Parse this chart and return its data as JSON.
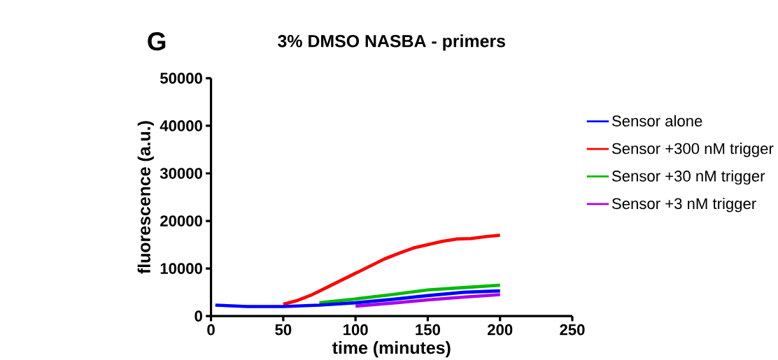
{
  "chart_data": {
    "type": "line",
    "title": "3% DMSO NASBA - primers",
    "xlabel": "time (minutes)",
    "ylabel": "fluorescence (a.u.)",
    "annotations": [
      "G"
    ],
    "xlim": [
      0,
      250
    ],
    "xticks": [
      0,
      50,
      100,
      150,
      200,
      250
    ],
    "ylim": [
      0,
      50000
    ],
    "yticks": [
      0,
      10000,
      20000,
      30000,
      40000,
      50000
    ],
    "grid": false,
    "legend": "right",
    "marker": "none",
    "line_style": "solid",
    "series": [
      {
        "name": "Sensor alone",
        "color": "#0000ff",
        "x": [
          3,
          25,
          50,
          75,
          100,
          125,
          150,
          175,
          200
        ],
        "values": [
          2300,
          2000,
          2000,
          2300,
          2800,
          3500,
          4300,
          5000,
          5300
        ]
      },
      {
        "name": "Sensor +300 nM trigger",
        "color": "#ff0000",
        "x": [
          50,
          60,
          70,
          80,
          90,
          100,
          110,
          120,
          130,
          140,
          150,
          160,
          170,
          180,
          190,
          200
        ],
        "values": [
          2500,
          3300,
          4500,
          6000,
          7500,
          9000,
          10500,
          12000,
          13200,
          14300,
          15000,
          15700,
          16200,
          16300,
          16700,
          17000
        ]
      },
      {
        "name": "Sensor +30 nM trigger",
        "color": "#00bb00",
        "x": [
          75,
          100,
          125,
          150,
          175,
          200
        ],
        "values": [
          2800,
          3600,
          4500,
          5500,
          6000,
          6500
        ]
      },
      {
        "name": "Sensor +3 nM trigger",
        "color": "#aa00ee",
        "x": [
          100,
          125,
          150,
          175,
          200
        ],
        "values": [
          2100,
          2700,
          3400,
          4000,
          4500
        ]
      }
    ]
  }
}
